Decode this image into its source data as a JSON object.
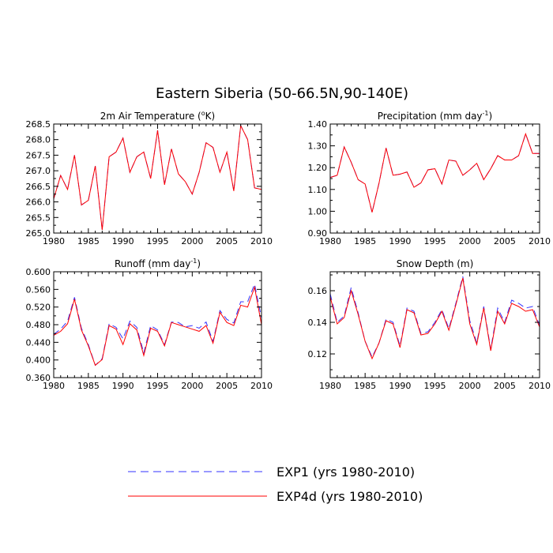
{
  "figure": {
    "title": "Eastern Siberia (50-66.5N,90-140E)"
  },
  "legend": {
    "position": "bottom",
    "entries": [
      {
        "label": "EXP1 (yrs 1980-2010)",
        "color": "#3333ff",
        "style": "dashed"
      },
      {
        "label": "EXP4d (yrs 1980-2010)",
        "color": "#ff0000",
        "style": "solid"
      }
    ]
  },
  "chart_data": [
    {
      "type": "line",
      "title_main": "2m Air Temperature (",
      "title_sup": "o",
      "title_end": "K)",
      "x": [
        1980,
        1981,
        1982,
        1983,
        1984,
        1985,
        1986,
        1987,
        1988,
        1989,
        1990,
        1991,
        1992,
        1993,
        1994,
        1995,
        1996,
        1997,
        1998,
        1999,
        2000,
        2001,
        2002,
        2003,
        2004,
        2005,
        2006,
        2007,
        2008,
        2009,
        2010
      ],
      "xlim": [
        1980,
        2010
      ],
      "xticks": [
        "1980",
        "1985",
        "1990",
        "1995",
        "2000",
        "2005",
        "2010"
      ],
      "ylim": [
        265.0,
        268.5
      ],
      "yticks": [
        "265.0",
        "265.5",
        "266.0",
        "266.5",
        "267.0",
        "267.5",
        "268.0",
        "268.5"
      ],
      "series": [
        {
          "name": "EXP1 (yrs 1980-2010)",
          "values": [
            266.1,
            266.85,
            266.4,
            267.5,
            265.9,
            266.05,
            267.15,
            265.1,
            267.45,
            267.6,
            268.05,
            266.95,
            267.45,
            267.6,
            266.75,
            268.3,
            266.55,
            267.7,
            266.9,
            266.65,
            266.25,
            266.95,
            267.9,
            267.75,
            266.95,
            267.6,
            266.35,
            268.45,
            268.0,
            266.45,
            266.4
          ]
        },
        {
          "name": "EXP4d (yrs 1980-2010)",
          "values": [
            266.1,
            266.85,
            266.4,
            267.5,
            265.9,
            266.05,
            267.15,
            265.1,
            267.45,
            267.6,
            268.05,
            266.95,
            267.45,
            267.6,
            266.75,
            268.3,
            266.55,
            267.7,
            266.9,
            266.65,
            266.25,
            266.95,
            267.9,
            267.75,
            266.95,
            267.6,
            266.35,
            268.45,
            268.0,
            266.45,
            266.4
          ]
        }
      ]
    },
    {
      "type": "line",
      "title_main": "Precipitation (mm day",
      "title_sup": "-1",
      "title_end": ")",
      "x": [
        1980,
        1981,
        1982,
        1983,
        1984,
        1985,
        1986,
        1987,
        1988,
        1989,
        1990,
        1991,
        1992,
        1993,
        1994,
        1995,
        1996,
        1997,
        1998,
        1999,
        2000,
        2001,
        2002,
        2003,
        2004,
        2005,
        2006,
        2007,
        2008,
        2009,
        2010
      ],
      "xlim": [
        1980,
        2010
      ],
      "xticks": [
        "1980",
        "1985",
        "1990",
        "1995",
        "2000",
        "2005",
        "2010"
      ],
      "ylim": [
        0.9,
        1.4
      ],
      "yticks": [
        "0.90",
        "1.00",
        "1.10",
        "1.20",
        "1.30",
        "1.40"
      ],
      "series": [
        {
          "name": "EXP1 (yrs 1980-2010)",
          "values": [
            1.155,
            1.165,
            1.295,
            1.225,
            1.145,
            1.125,
            0.995,
            1.13,
            1.29,
            1.165,
            1.17,
            1.18,
            1.11,
            1.13,
            1.19,
            1.195,
            1.125,
            1.235,
            1.23,
            1.165,
            1.19,
            1.22,
            1.145,
            1.195,
            1.255,
            1.235,
            1.235,
            1.255,
            1.355,
            1.265,
            1.265
          ]
        },
        {
          "name": "EXP4d (yrs 1980-2010)",
          "values": [
            1.155,
            1.165,
            1.295,
            1.225,
            1.145,
            1.125,
            0.995,
            1.13,
            1.29,
            1.165,
            1.17,
            1.18,
            1.11,
            1.13,
            1.19,
            1.195,
            1.125,
            1.235,
            1.23,
            1.165,
            1.19,
            1.22,
            1.145,
            1.195,
            1.255,
            1.235,
            1.235,
            1.255,
            1.355,
            1.265,
            1.265
          ]
        }
      ]
    },
    {
      "type": "line",
      "title_main": "Runoff (mm day",
      "title_sup": "-1",
      "title_end": ")",
      "x": [
        1980,
        1981,
        1982,
        1983,
        1984,
        1985,
        1986,
        1987,
        1988,
        1989,
        1990,
        1991,
        1992,
        1993,
        1994,
        1995,
        1996,
        1997,
        1998,
        1999,
        2000,
        2001,
        2002,
        2003,
        2004,
        2005,
        2006,
        2007,
        2008,
        2009,
        2010
      ],
      "xlim": [
        1980,
        2010
      ],
      "xticks": [
        "1980",
        "1985",
        "1990",
        "1995",
        "2000",
        "2005",
        "2010"
      ],
      "ylim": [
        0.36,
        0.6
      ],
      "yticks": [
        "0.360",
        "0.400",
        "0.440",
        "0.480",
        "0.520",
        "0.560",
        "0.600"
      ],
      "series": [
        {
          "name": "EXP1 (yrs 1980-2010)",
          "values": [
            0.458,
            0.47,
            0.488,
            0.542,
            0.472,
            0.435,
            0.388,
            0.403,
            0.482,
            0.474,
            0.448,
            0.488,
            0.474,
            0.416,
            0.478,
            0.468,
            0.435,
            0.486,
            0.485,
            0.475,
            0.478,
            0.472,
            0.486,
            0.442,
            0.512,
            0.492,
            0.484,
            0.532,
            0.532,
            0.572,
            0.495
          ]
        },
        {
          "name": "EXP4d (yrs 1980-2010)",
          "values": [
            0.456,
            0.465,
            0.482,
            0.538,
            0.468,
            0.432,
            0.388,
            0.401,
            0.478,
            0.47,
            0.435,
            0.482,
            0.468,
            0.41,
            0.472,
            0.465,
            0.432,
            0.485,
            0.48,
            0.475,
            0.47,
            0.465,
            0.478,
            0.438,
            0.508,
            0.485,
            0.478,
            0.524,
            0.52,
            0.565,
            0.48
          ]
        }
      ]
    },
    {
      "type": "line",
      "title_main": "Snow Depth (m)",
      "title_sup": "",
      "title_end": "",
      "x": [
        1980,
        1981,
        1982,
        1983,
        1984,
        1985,
        1986,
        1987,
        1988,
        1989,
        1990,
        1991,
        1992,
        1993,
        1994,
        1995,
        1996,
        1997,
        1998,
        1999,
        2000,
        2001,
        2002,
        2003,
        2004,
        2005,
        2006,
        2007,
        2008,
        2009,
        2010
      ],
      "xlim": [
        1980,
        2010
      ],
      "xticks": [
        "1980",
        "1985",
        "1990",
        "1995",
        "2000",
        "2005",
        "2010"
      ],
      "ylim": [
        0.105,
        0.172
      ],
      "yticks": [
        "0.12",
        "0.14",
        "0.16"
      ],
      "ytick_values": [
        0.12,
        0.14,
        0.16
      ],
      "series": [
        {
          "name": "EXP1 (yrs 1980-2010)",
          "values": [
            0.158,
            0.14,
            0.144,
            0.162,
            0.146,
            0.128,
            0.118,
            0.127,
            0.142,
            0.14,
            0.125,
            0.149,
            0.147,
            0.133,
            0.134,
            0.14,
            0.148,
            0.136,
            0.152,
            0.169,
            0.141,
            0.127,
            0.15,
            0.123,
            0.149,
            0.14,
            0.154,
            0.152,
            0.149,
            0.15,
            0.138
          ]
        },
        {
          "name": "EXP4d (yrs 1980-2010)",
          "values": [
            0.156,
            0.139,
            0.143,
            0.16,
            0.145,
            0.128,
            0.117,
            0.127,
            0.141,
            0.139,
            0.124,
            0.148,
            0.146,
            0.132,
            0.133,
            0.139,
            0.147,
            0.135,
            0.151,
            0.168,
            0.139,
            0.126,
            0.149,
            0.122,
            0.147,
            0.139,
            0.152,
            0.15,
            0.147,
            0.148,
            0.137
          ]
        }
      ]
    }
  ]
}
